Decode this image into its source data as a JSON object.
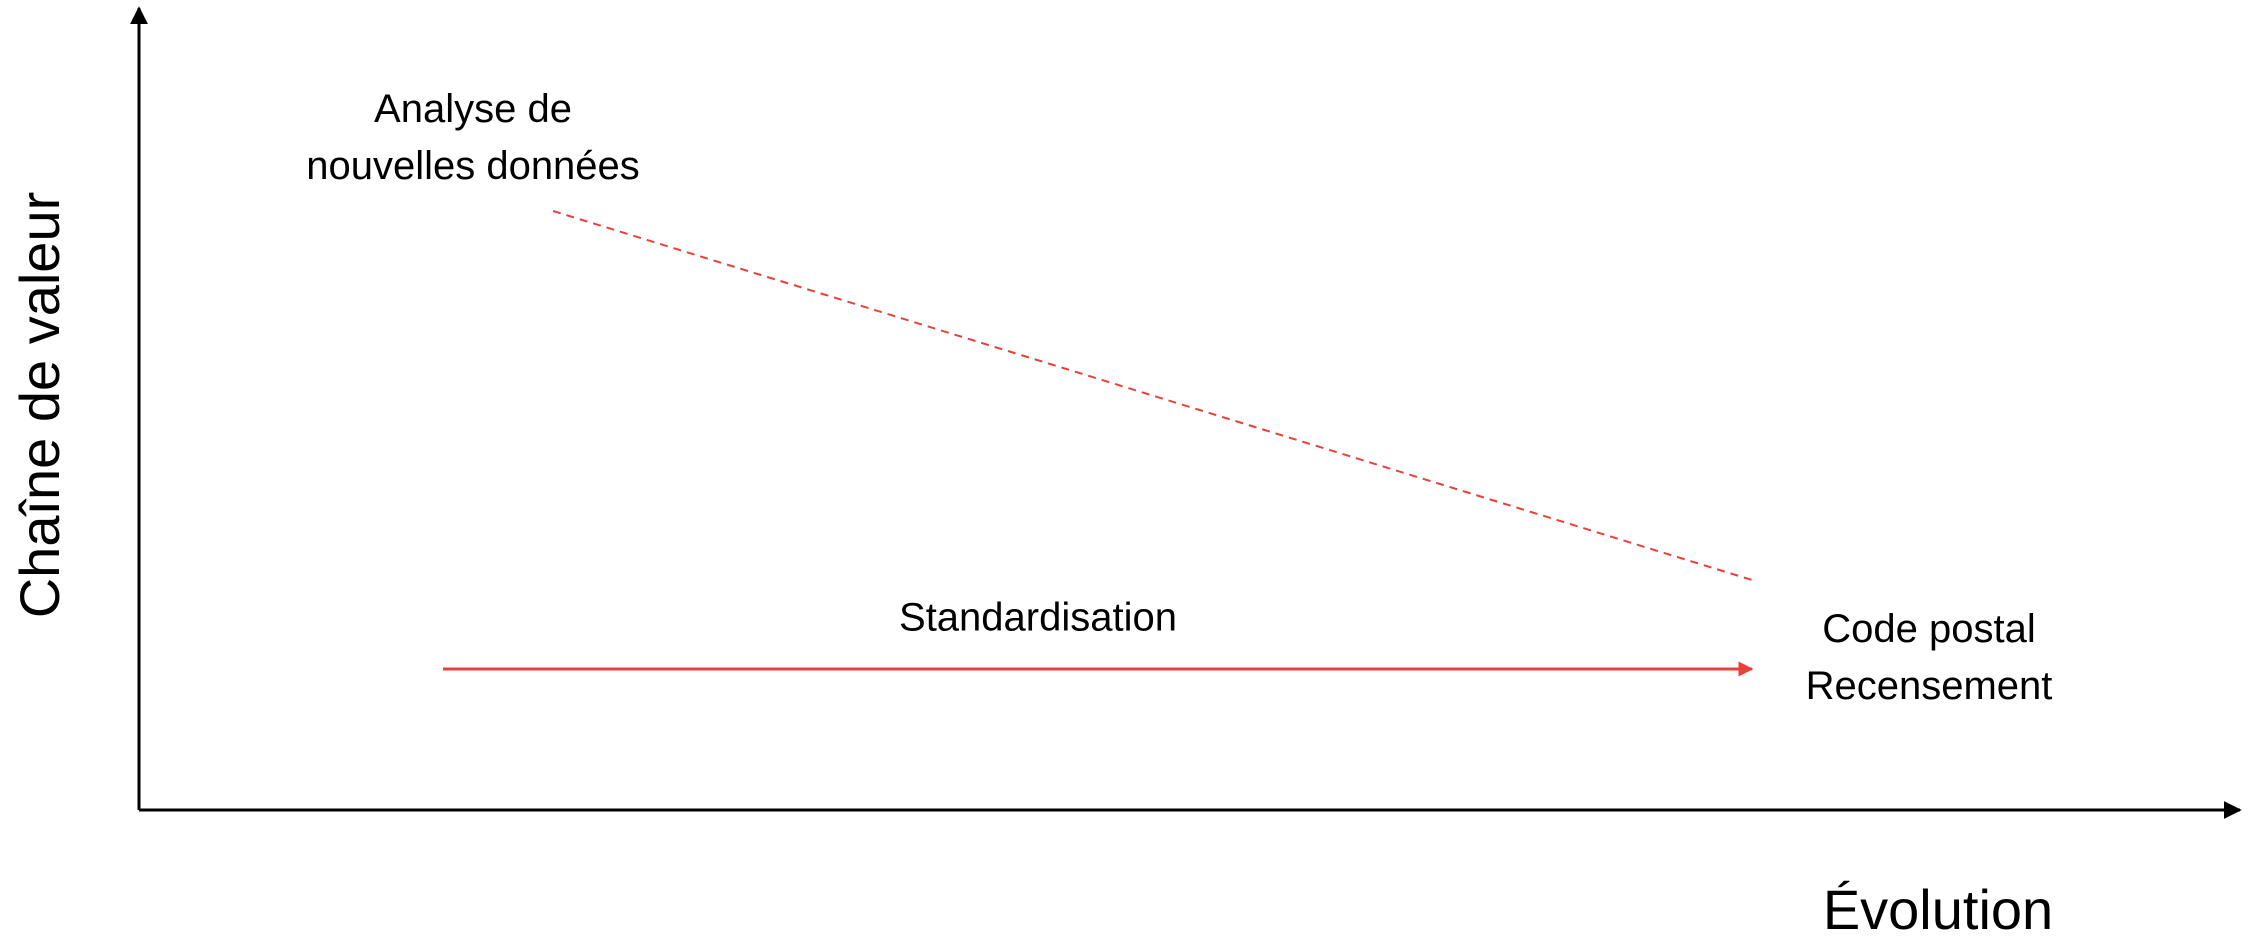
{
  "axes": {
    "y_label": "Chaîne de valeur",
    "x_label": "Évolution"
  },
  "nodes": {
    "new_data_analysis": {
      "lines": [
        "Analyse de",
        "nouvelles données"
      ]
    },
    "standardisation": {
      "label": "Standardisation"
    },
    "endpoint": {
      "lines": [
        "Code postal",
        "Recensement"
      ]
    }
  },
  "colors": {
    "axis": "#000000",
    "accent": "#e8413c",
    "text": "#000000"
  }
}
